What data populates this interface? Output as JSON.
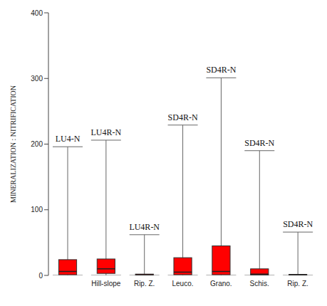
{
  "chart_data": {
    "type": "boxplot",
    "ylabel": "MINERALIZATION : NITRIFICATION",
    "categories": [
      null,
      "Hill-slope",
      "Rip. Z.",
      "Leuco.",
      "Grano.",
      "Schis.",
      "Rip. Z."
    ],
    "annotations": [
      "LU4-N",
      "LU4R-N",
      "LU4R-N",
      "SD4R-N",
      "SD4R-N",
      "SD4R-N",
      "SD4R-N"
    ],
    "min": [
      0,
      0,
      0,
      0,
      0,
      0,
      0
    ],
    "q1": [
      1,
      3,
      0.5,
      1,
      1,
      0.5,
      0.5
    ],
    "median": [
      6,
      10,
      1,
      5,
      6,
      2,
      1
    ],
    "q3": [
      24,
      25,
      2,
      27,
      45,
      10,
      1.5
    ],
    "max": [
      196,
      206,
      62,
      229,
      301,
      190,
      66
    ],
    "color": "#ff0000",
    "ylim": [
      0,
      400
    ],
    "yticks": [
      0,
      100,
      200,
      300,
      400
    ],
    "grid": false
  }
}
